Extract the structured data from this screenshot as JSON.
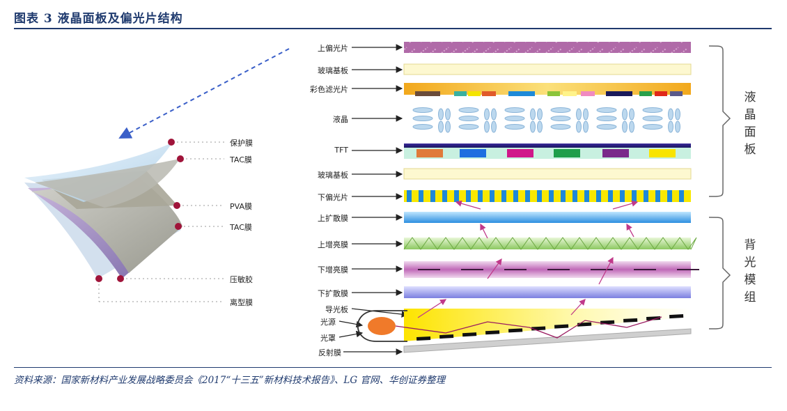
{
  "header": {
    "title": "图表 3    液晶面板及偏光片结构"
  },
  "left_labels": [
    "保护膜",
    "TAC膜",
    "PVA膜",
    "TAC膜",
    "压敏胶",
    "离型膜"
  ],
  "right_layers": [
    "上偏光片",
    "玻璃基板",
    "彩色滤光片",
    "液晶",
    "TFT",
    "玻璃基板",
    "下偏光片",
    "上扩散膜",
    "上增亮膜",
    "下增亮膜",
    "下扩散膜",
    "导光板",
    "光源",
    "光罩",
    "反射膜"
  ],
  "groups": {
    "panel": "液晶面板",
    "backlight": "背光模组"
  },
  "footer": {
    "source": "资料来源：国家新材料产业发展战略委员会《2017“十三五”新材料技术报告》、LG 官网、华创证券整理"
  },
  "colors": {
    "accent": "#1f3a6e",
    "marker": "#a0143a",
    "arrow_magenta": "#c0398a",
    "dashed_blue": "#3a5fc8"
  }
}
